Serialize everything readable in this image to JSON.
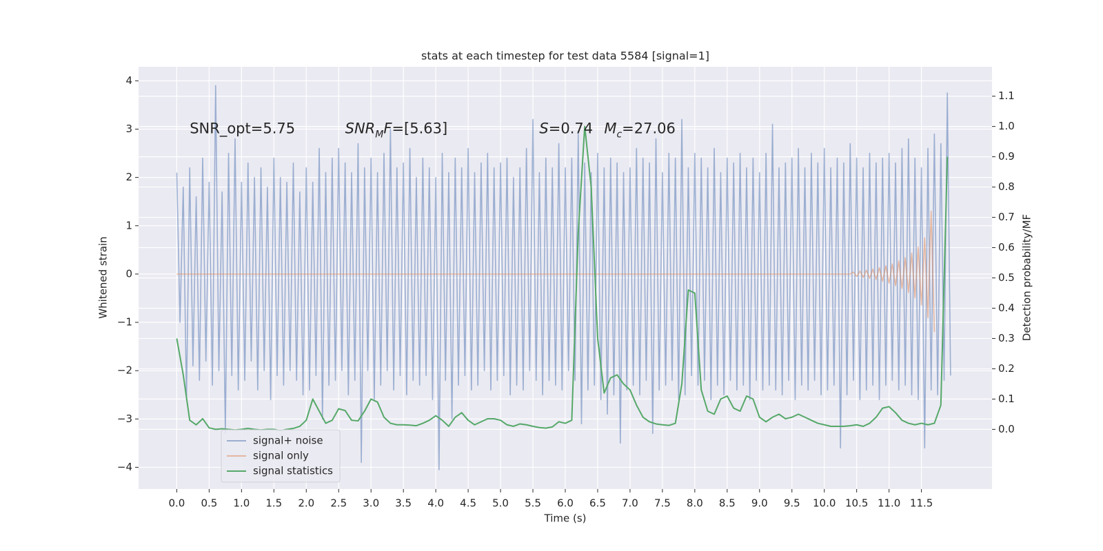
{
  "chart_data": {
    "type": "line",
    "title": "stats at each timestep for test data 5584 [signal=1]",
    "xlabel": "Time (s)",
    "ylabel": "Whitened strain",
    "y2label": "Detection probability/MF",
    "xlim": [
      -0.59,
      12.59
    ],
    "ylim": [
      -4.45,
      4.29
    ],
    "y2lim": [
      -0.197,
      1.197
    ],
    "grid": true,
    "legend_loc": "lower left",
    "xticks": [
      {
        "value": 0,
        "label": "0.0"
      },
      0.5,
      {
        "value": 1,
        "label": "1.0"
      },
      1.5,
      {
        "value": 2,
        "label": "2.0"
      },
      2.5,
      {
        "value": 3,
        "label": "3.0"
      },
      3.5,
      {
        "value": 4,
        "label": "4.0"
      },
      4.5,
      {
        "value": 5,
        "label": "5.0"
      },
      5.5,
      {
        "value": 6,
        "label": "6.0"
      },
      6.5,
      {
        "value": 7,
        "label": "7.0"
      },
      7.5,
      {
        "value": 8,
        "label": "8.0"
      },
      8.5,
      {
        "value": 9,
        "label": "9.0"
      },
      9.5,
      {
        "value": 10,
        "label": "10.0"
      },
      10.5,
      {
        "value": 11,
        "label": "11.0"
      },
      11.5
    ],
    "yticks": [
      {
        "value": -4,
        "label": "−4"
      },
      {
        "value": -3,
        "label": "−3"
      },
      {
        "value": -2,
        "label": "−2"
      },
      {
        "value": -1,
        "label": "−1"
      },
      0,
      1,
      2,
      3,
      4
    ],
    "y2ticks": [
      {
        "value": 0,
        "label": "0.0"
      },
      0.1,
      0.2,
      0.3,
      0.4,
      0.5,
      0.6,
      0.7,
      0.8,
      0.9,
      {
        "value": 1,
        "label": "1.0"
      },
      1.1
    ],
    "annotations": [
      {
        "x": 0.2,
        "y": 3.0,
        "parts": [
          {
            "text": "SNR_opt=5.75",
            "style": "normal"
          }
        ]
      },
      {
        "x": 2.6,
        "y": 3.0,
        "parts": [
          {
            "text": "SNR",
            "style": "italic"
          },
          {
            "text": "M",
            "style": "sub"
          },
          {
            "text": "F",
            "style": "italic"
          },
          {
            "text": "=[5.63]",
            "style": "normal"
          }
        ]
      },
      {
        "x": 5.6,
        "y": 3.0,
        "parts": [
          {
            "text": "S",
            "style": "italic"
          },
          {
            "text": "=0.74",
            "style": "normal"
          }
        ]
      },
      {
        "x": 6.6,
        "y": 3.0,
        "parts": [
          {
            "text": "M",
            "style": "italic"
          },
          {
            "text": "c",
            "style": "sub"
          },
          {
            "text": "=27.06",
            "style": "normal"
          }
        ]
      }
    ],
    "series": [
      {
        "name": "signal+ noise",
        "color": "#4c72b0",
        "opacity": 0.5,
        "x": [
          0,
          0.05,
          0.1,
          0.15,
          0.2,
          0.25,
          0.3,
          0.35,
          0.4,
          0.45,
          0.5,
          0.55,
          0.6,
          0.65,
          0.7,
          0.75,
          0.8,
          0.85,
          0.9,
          0.95,
          1,
          1.05,
          1.1,
          1.15,
          1.2,
          1.25,
          1.3,
          1.35,
          1.4,
          1.45,
          1.5,
          1.55,
          1.6,
          1.65,
          1.7,
          1.75,
          1.8,
          1.85,
          1.9,
          1.95,
          2,
          2.05,
          2.1,
          2.15,
          2.2,
          2.25,
          2.3,
          2.35,
          2.4,
          2.45,
          2.5,
          2.55,
          2.6,
          2.65,
          2.7,
          2.75,
          2.8,
          2.85,
          2.9,
          2.95,
          3,
          3.05,
          3.1,
          3.15,
          3.2,
          3.25,
          3.3,
          3.35,
          3.4,
          3.45,
          3.5,
          3.55,
          3.6,
          3.65,
          3.7,
          3.75,
          3.8,
          3.85,
          3.9,
          3.95,
          4,
          4.05,
          4.1,
          4.15,
          4.2,
          4.25,
          4.3,
          4.35,
          4.4,
          4.45,
          4.5,
          4.55,
          4.6,
          4.65,
          4.7,
          4.75,
          4.8,
          4.85,
          4.9,
          4.95,
          5,
          5.05,
          5.1,
          5.15,
          5.2,
          5.25,
          5.3,
          5.35,
          5.4,
          5.45,
          5.5,
          5.55,
          5.6,
          5.65,
          5.7,
          5.75,
          5.8,
          5.85,
          5.9,
          5.95,
          6,
          6.05,
          6.1,
          6.15,
          6.2,
          6.25,
          6.3,
          6.35,
          6.4,
          6.45,
          6.5,
          6.55,
          6.6,
          6.65,
          6.7,
          6.75,
          6.8,
          6.85,
          6.9,
          6.95,
          7,
          7.05,
          7.1,
          7.15,
          7.2,
          7.25,
          7.3,
          7.35,
          7.4,
          7.45,
          7.5,
          7.55,
          7.6,
          7.65,
          7.7,
          7.75,
          7.8,
          7.85,
          7.9,
          7.95,
          8,
          8.05,
          8.1,
          8.15,
          8.2,
          8.25,
          8.3,
          8.35,
          8.4,
          8.45,
          8.5,
          8.55,
          8.6,
          8.65,
          8.7,
          8.75,
          8.8,
          8.85,
          8.9,
          8.95,
          9,
          9.05,
          9.1,
          9.15,
          9.2,
          9.25,
          9.3,
          9.35,
          9.4,
          9.45,
          9.5,
          9.55,
          9.6,
          9.65,
          9.7,
          9.75,
          9.8,
          9.85,
          9.9,
          9.95,
          10,
          10.05,
          10.1,
          10.15,
          10.2,
          10.25,
          10.3,
          10.35,
          10.4,
          10.45,
          10.5,
          10.55,
          10.6,
          10.65,
          10.7,
          10.75,
          10.8,
          10.85,
          10.9,
          10.95,
          11,
          11.05,
          11.1,
          11.15,
          11.2,
          11.25,
          11.3,
          11.35,
          11.4,
          11.45,
          11.5,
          11.55,
          11.6,
          11.65,
          11.7,
          11.75,
          11.8,
          11.85,
          11.9,
          11.95
        ],
        "values": [
          2.1,
          -1.0,
          1.8,
          -2.6,
          2.2,
          -1.9,
          1.6,
          -2.2,
          2.4,
          -1.8,
          1.9,
          -2.3,
          3.9,
          -2.0,
          1.7,
          -3.3,
          2.5,
          -2.1,
          2.8,
          -2.4,
          1.9,
          -2.2,
          2.3,
          -1.8,
          2.0,
          -2.4,
          2.2,
          -2.0,
          1.8,
          -2.6,
          2.4,
          -2.1,
          2.0,
          -2.3,
          1.9,
          -2.0,
          2.3,
          -2.2,
          1.7,
          -2.5,
          2.2,
          -2.4,
          1.9,
          -2.1,
          2.6,
          -3.0,
          2.1,
          -2.3,
          2.4,
          -2.2,
          2.6,
          -2.0,
          2.3,
          -2.5,
          2.1,
          -2.2,
          2.7,
          -3.9,
          2.2,
          -2.0,
          2.4,
          -2.6,
          2.1,
          -2.3,
          2.5,
          -2.0,
          3.0,
          -2.4,
          2.2,
          -2.1,
          2.3,
          -2.5,
          2.6,
          -2.2,
          2.0,
          -2.3,
          2.4,
          -2.1,
          2.2,
          -2.6,
          2.0,
          -4.05,
          2.5,
          -2.2,
          2.1,
          -3.0,
          2.4,
          -2.3,
          2.2,
          -2.1,
          2.6,
          -2.4,
          2.1,
          -2.3,
          2.3,
          -2.0,
          2.5,
          -2.4,
          2.2,
          -2.2,
          2.3,
          -2.1,
          2.4,
          -2.5,
          2.0,
          -2.3,
          2.2,
          -2.4,
          2.6,
          -2.0,
          3.2,
          -2.2,
          2.1,
          -2.5,
          2.4,
          -2.2,
          2.2,
          -2.3,
          2.7,
          -2.4,
          2.2,
          -2.0,
          2.4,
          -2.2,
          2.9,
          -3.1,
          2.3,
          -2.4,
          2.1,
          -2.3,
          2.5,
          -2.6,
          2.2,
          -2.9,
          2.4,
          -2.5,
          2.3,
          -3.5,
          2.1,
          -2.4,
          2.2,
          -2.3,
          2.6,
          -2.5,
          2.4,
          -2.2,
          2.3,
          -3.3,
          2.8,
          -2.4,
          2.1,
          -2.3,
          2.5,
          -2.2,
          2.4,
          -2.6,
          3.2,
          -2.5,
          2.2,
          -2.1,
          2.5,
          -2.3,
          2.4,
          -2.2,
          2.2,
          -2.6,
          2.6,
          -2.3,
          2.1,
          -2.5,
          2.4,
          -2.2,
          2.3,
          -2.4,
          2.5,
          -2.3,
          2.2,
          -2.6,
          2.4,
          -2.2,
          2.1,
          -2.4,
          2.5,
          -2.3,
          3.1,
          -2.4,
          2.2,
          -2.5,
          2.3,
          -2.2,
          2.4,
          -2.6,
          2.6,
          -2.3,
          2.2,
          -2.4,
          2.5,
          -2.2,
          2.3,
          -2.5,
          2.6,
          -2.4,
          2.2,
          -2.3,
          2.4,
          -3.6,
          2.3,
          -2.5,
          2.7,
          -2.2,
          2.4,
          -2.6,
          2.2,
          -2.4,
          2.5,
          -2.3,
          2.3,
          -2.6,
          2.4,
          -2.3,
          2.5,
          -2.2,
          2.3,
          -2.4,
          2.6,
          -2.3,
          2.8,
          -2.5,
          2.4,
          -2.6,
          2.2,
          -3.6,
          2.6,
          -2.4,
          2.9,
          -2.5,
          2.7,
          -2.2,
          3.75,
          -2.1
        ]
      },
      {
        "name": "signal only",
        "color": "#dd8452",
        "opacity": 0.5,
        "x": [
          0,
          10.4,
          10.45,
          10.5,
          10.55,
          10.6,
          10.65,
          10.7,
          10.75,
          10.8,
          10.85,
          10.9,
          10.95,
          11,
          11.05,
          11.1,
          11.15,
          11.2,
          11.25,
          11.3,
          11.35,
          11.4,
          11.45,
          11.5,
          11.55,
          11.6,
          11.65,
          11.7
        ],
        "values": [
          0,
          0,
          0.04,
          -0.05,
          0.06,
          -0.07,
          0.08,
          -0.09,
          0.1,
          -0.11,
          0.13,
          -0.15,
          0.17,
          -0.19,
          0.21,
          -0.24,
          0.27,
          -0.3,
          0.34,
          -0.38,
          0.43,
          -0.49,
          0.56,
          -0.64,
          0.75,
          -0.9,
          1.3,
          -1.2
        ]
      },
      {
        "name": "signal statistics",
        "color": "#55a868",
        "opacity": 1,
        "axis": "y2",
        "x": [
          0,
          0.1,
          0.2,
          0.3,
          0.4,
          0.5,
          0.6,
          0.7,
          0.8,
          0.9,
          1,
          1.1,
          1.2,
          1.3,
          1.4,
          1.5,
          1.6,
          1.7,
          1.8,
          1.9,
          2,
          2.1,
          2.2,
          2.3,
          2.4,
          2.5,
          2.6,
          2.7,
          2.8,
          2.9,
          3,
          3.1,
          3.2,
          3.3,
          3.4,
          3.5,
          3.6,
          3.7,
          3.8,
          3.9,
          4,
          4.1,
          4.2,
          4.3,
          4.4,
          4.5,
          4.6,
          4.7,
          4.8,
          4.9,
          5,
          5.1,
          5.2,
          5.3,
          5.4,
          5.5,
          5.6,
          5.7,
          5.8,
          5.9,
          6,
          6.1,
          6.2,
          6.3,
          6.4,
          6.5,
          6.6,
          6.7,
          6.8,
          6.9,
          7,
          7.1,
          7.2,
          7.3,
          7.4,
          7.5,
          7.6,
          7.7,
          7.8,
          7.9,
          8,
          8.1,
          8.2,
          8.3,
          8.4,
          8.5,
          8.6,
          8.7,
          8.8,
          8.9,
          9,
          9.1,
          9.2,
          9.3,
          9.4,
          9.5,
          9.6,
          9.7,
          9.8,
          9.9,
          10,
          10.1,
          10.2,
          10.3,
          10.4,
          10.5,
          10.6,
          10.7,
          10.8,
          10.9,
          11,
          11.1,
          11.2,
          11.3,
          11.4,
          11.5,
          11.6,
          11.7,
          11.8,
          11.9
        ],
        "values": [
          0.3,
          0.18,
          0.03,
          0.015,
          0.035,
          0.005,
          0.0,
          0.002,
          0.0,
          -0.002,
          0.0,
          0.003,
          0.0,
          -0.002,
          0.0,
          0.0,
          -0.004,
          0.0,
          0.003,
          0.01,
          0.03,
          0.1,
          0.06,
          0.02,
          0.03,
          0.068,
          0.062,
          0.03,
          0.028,
          0.06,
          0.1,
          0.09,
          0.04,
          0.02,
          0.015,
          0.015,
          0.014,
          0.012,
          0.02,
          0.03,
          0.045,
          0.03,
          0.01,
          0.04,
          0.055,
          0.03,
          0.015,
          0.025,
          0.035,
          0.035,
          0.03,
          0.015,
          0.01,
          0.018,
          0.015,
          0.01,
          0.006,
          0.004,
          0.008,
          0.025,
          0.02,
          0.03,
          0.65,
          1.0,
          0.8,
          0.3,
          0.12,
          0.17,
          0.18,
          0.15,
          0.13,
          0.08,
          0.04,
          0.025,
          0.018,
          0.015,
          0.013,
          0.02,
          0.15,
          0.46,
          0.45,
          0.13,
          0.06,
          0.05,
          0.1,
          0.11,
          0.07,
          0.06,
          0.11,
          0.1,
          0.04,
          0.025,
          0.04,
          0.05,
          0.035,
          0.04,
          0.05,
          0.04,
          0.03,
          0.02,
          0.015,
          0.01,
          0.01,
          0.01,
          0.012,
          0.015,
          0.01,
          0.02,
          0.04,
          0.07,
          0.075,
          0.055,
          0.03,
          0.02,
          0.015,
          0.02,
          0.015,
          0.02,
          0.08,
          0.9
        ]
      }
    ]
  }
}
